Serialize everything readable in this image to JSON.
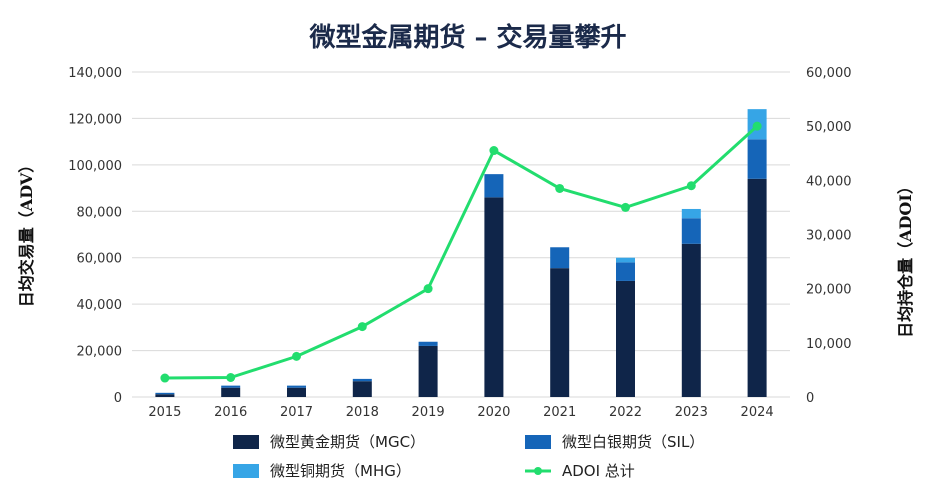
{
  "chart_data": {
    "type": "bar",
    "title": "微型金属期货 – 交易量攀升",
    "xlabel": "",
    "ylabel": "日均交易量（ADV）",
    "y2label": "日均持仓量（ADOI）",
    "categories": [
      "2015",
      "2016",
      "2017",
      "2018",
      "2019",
      "2020",
      "2021",
      "2022",
      "2023",
      "2024"
    ],
    "ylim": [
      0,
      140000
    ],
    "y2lim": [
      0,
      60000
    ],
    "yticks": [
      "0",
      "20,000",
      "40,000",
      "60,000",
      "80,000",
      "100,000",
      "120,000",
      "140,000"
    ],
    "y2ticks": [
      "0",
      "10,000",
      "20,000",
      "30,000",
      "40,000",
      "50,000",
      "60,000"
    ],
    "grid": true,
    "stacked": true,
    "series": [
      {
        "name": "微型黄金期货（MGC）",
        "color": "#0f2549",
        "axis": "left",
        "type": "bar",
        "values": [
          1200,
          4000,
          4000,
          6800,
          22000,
          86000,
          55500,
          50000,
          66000,
          94000
        ]
      },
      {
        "name": "微型白银期货（SIL）",
        "color": "#1565b8",
        "axis": "left",
        "type": "bar",
        "values": [
          600,
          900,
          900,
          1000,
          1800,
          10000,
          9000,
          8000,
          11000,
          17000
        ]
      },
      {
        "name": "微型铜期货（MHG）",
        "color": "#36a5e6",
        "axis": "left",
        "type": "bar",
        "values": [
          0,
          0,
          0,
          0,
          0,
          0,
          0,
          2000,
          4000,
          13000
        ]
      },
      {
        "name": "ADOI 总计",
        "color": "#22dd6e",
        "axis": "right",
        "type": "line",
        "values": [
          3500,
          3600,
          7500,
          13000,
          20000,
          45500,
          38500,
          35000,
          39000,
          50000
        ]
      }
    ],
    "legend": "bottom"
  }
}
